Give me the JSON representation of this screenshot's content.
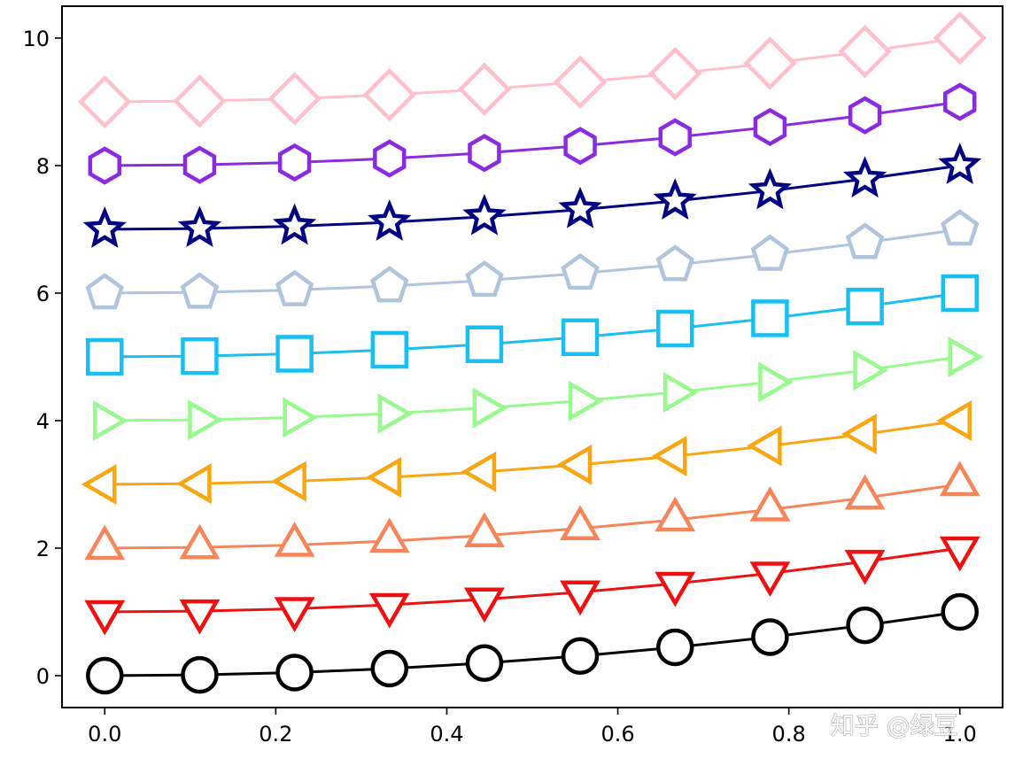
{
  "chart_data": {
    "type": "line",
    "title": "",
    "xlabel": "",
    "ylabel": "",
    "xlim": [
      -0.05,
      1.05
    ],
    "ylim": [
      -0.5,
      10.5
    ],
    "grid": false,
    "legend": "none",
    "xticks": [
      0.0,
      0.2,
      0.4,
      0.6,
      0.8,
      1.0
    ],
    "xtick_labels": [
      "0.0",
      "0.2",
      "0.4",
      "0.6",
      "0.8",
      "1.0"
    ],
    "yticks": [
      0,
      2,
      4,
      6,
      8,
      10
    ],
    "ytick_labels": [
      "0",
      "2",
      "4",
      "6",
      "8",
      "10"
    ],
    "x": [
      0.0,
      0.111,
      0.222,
      0.333,
      0.444,
      0.556,
      0.667,
      0.778,
      0.889,
      1.0
    ],
    "series": [
      {
        "marker": "circle",
        "color": "#000000",
        "values": [
          0.0,
          0.012,
          0.049,
          0.111,
          0.198,
          0.309,
          0.444,
          0.605,
          0.79,
          1.0
        ]
      },
      {
        "marker": "triangle-down",
        "color": "#ee1111",
        "values": [
          1.0,
          1.012,
          1.049,
          1.111,
          1.198,
          1.309,
          1.444,
          1.605,
          1.79,
          2.0
        ]
      },
      {
        "marker": "triangle-up",
        "color": "#f7855a",
        "values": [
          2.0,
          2.012,
          2.049,
          2.111,
          2.198,
          2.309,
          2.444,
          2.605,
          2.79,
          3.0
        ]
      },
      {
        "marker": "triangle-left",
        "color": "#f8a712",
        "values": [
          3.0,
          3.012,
          3.049,
          3.111,
          3.198,
          3.309,
          3.444,
          3.605,
          3.79,
          4.0
        ]
      },
      {
        "marker": "triangle-right",
        "color": "#98f98e",
        "values": [
          4.0,
          4.012,
          4.049,
          4.111,
          4.198,
          4.309,
          4.444,
          4.605,
          4.79,
          5.0
        ]
      },
      {
        "marker": "square",
        "color": "#19bff0",
        "values": [
          5.0,
          5.012,
          5.049,
          5.111,
          5.198,
          5.309,
          5.444,
          5.605,
          5.79,
          6.0
        ]
      },
      {
        "marker": "pentagon",
        "color": "#b0c4de",
        "values": [
          6.0,
          6.012,
          6.049,
          6.111,
          6.198,
          6.309,
          6.444,
          6.605,
          6.79,
          7.0
        ]
      },
      {
        "marker": "star",
        "color": "#000080",
        "values": [
          7.0,
          7.012,
          7.049,
          7.111,
          7.198,
          7.309,
          7.444,
          7.605,
          7.79,
          8.0
        ]
      },
      {
        "marker": "hexagon",
        "color": "#8a2be2",
        "values": [
          8.0,
          8.012,
          8.049,
          8.111,
          8.198,
          8.309,
          8.444,
          8.605,
          8.79,
          9.0
        ]
      },
      {
        "marker": "diamond",
        "color": "#ffc0cb",
        "values": [
          9.0,
          9.012,
          9.049,
          9.111,
          9.198,
          9.309,
          9.444,
          9.605,
          9.79,
          10.0
        ]
      }
    ]
  },
  "watermark": {
    "text": "知乎 @绿豆"
  }
}
